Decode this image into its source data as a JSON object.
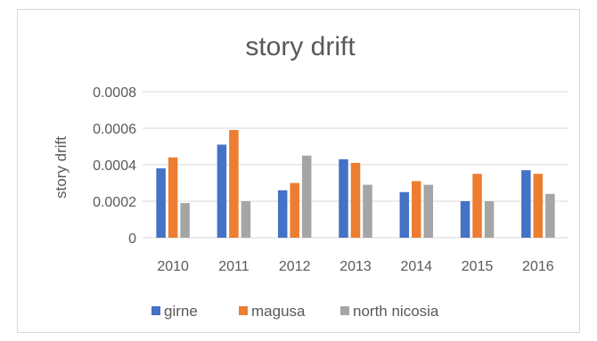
{
  "chart_data": {
    "type": "bar",
    "title": "story drift",
    "xlabel": "",
    "ylabel": "story drift",
    "categories": [
      "2010",
      "2011",
      "2012",
      "2013",
      "2014",
      "2015",
      "2016"
    ],
    "series": [
      {
        "name": "girne",
        "color": "#4472c4",
        "values": [
          0.00038,
          0.00051,
          0.00026,
          0.00043,
          0.00025,
          0.0002,
          0.00037
        ]
      },
      {
        "name": "magusa",
        "color": "#ed7d31",
        "values": [
          0.00044,
          0.00059,
          0.0003,
          0.00041,
          0.00031,
          0.00035,
          0.00035
        ]
      },
      {
        "name": "north nicosia",
        "color": "#a5a5a5",
        "values": [
          0.00019,
          0.0002,
          0.00045,
          0.00029,
          0.00029,
          0.0002,
          0.00024
        ]
      }
    ],
    "ylim": [
      0,
      0.0008
    ],
    "yticks": [
      "0",
      "0.0002",
      "0.0004",
      "0.0006",
      "0.0008"
    ],
    "grid": true,
    "legend_position": "bottom"
  }
}
